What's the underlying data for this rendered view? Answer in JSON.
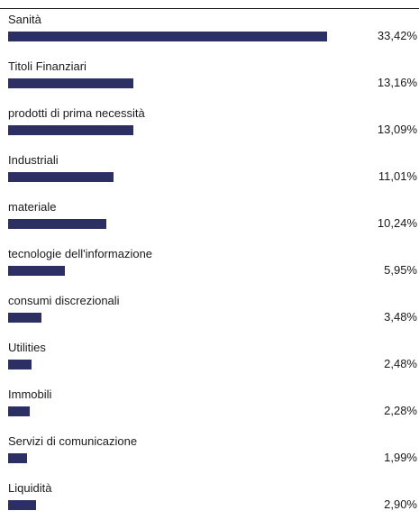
{
  "chart_data": {
    "type": "bar",
    "orientation": "horizontal",
    "categories": [
      "Sanità",
      "Titoli Finanziari",
      "prodotti di prima necessità",
      "Industriali",
      "materiale",
      "tecnologie dell'informazione",
      "consumi discrezionali",
      "Utilities",
      "Immobili",
      "Servizi di comunicazione",
      "Liquidità"
    ],
    "values": [
      33.42,
      13.16,
      13.09,
      11.01,
      10.24,
      5.95,
      3.48,
      2.48,
      2.28,
      1.99,
      2.9
    ],
    "value_labels": [
      "33,42%",
      "13,16%",
      "13,09%",
      "11,01%",
      "10,24%",
      "5,95%",
      "3,48%",
      "2,48%",
      "2,28%",
      "1,99%",
      "2,90%"
    ],
    "bar_color": "#2c2f63",
    "grid": false,
    "legend": "none"
  }
}
